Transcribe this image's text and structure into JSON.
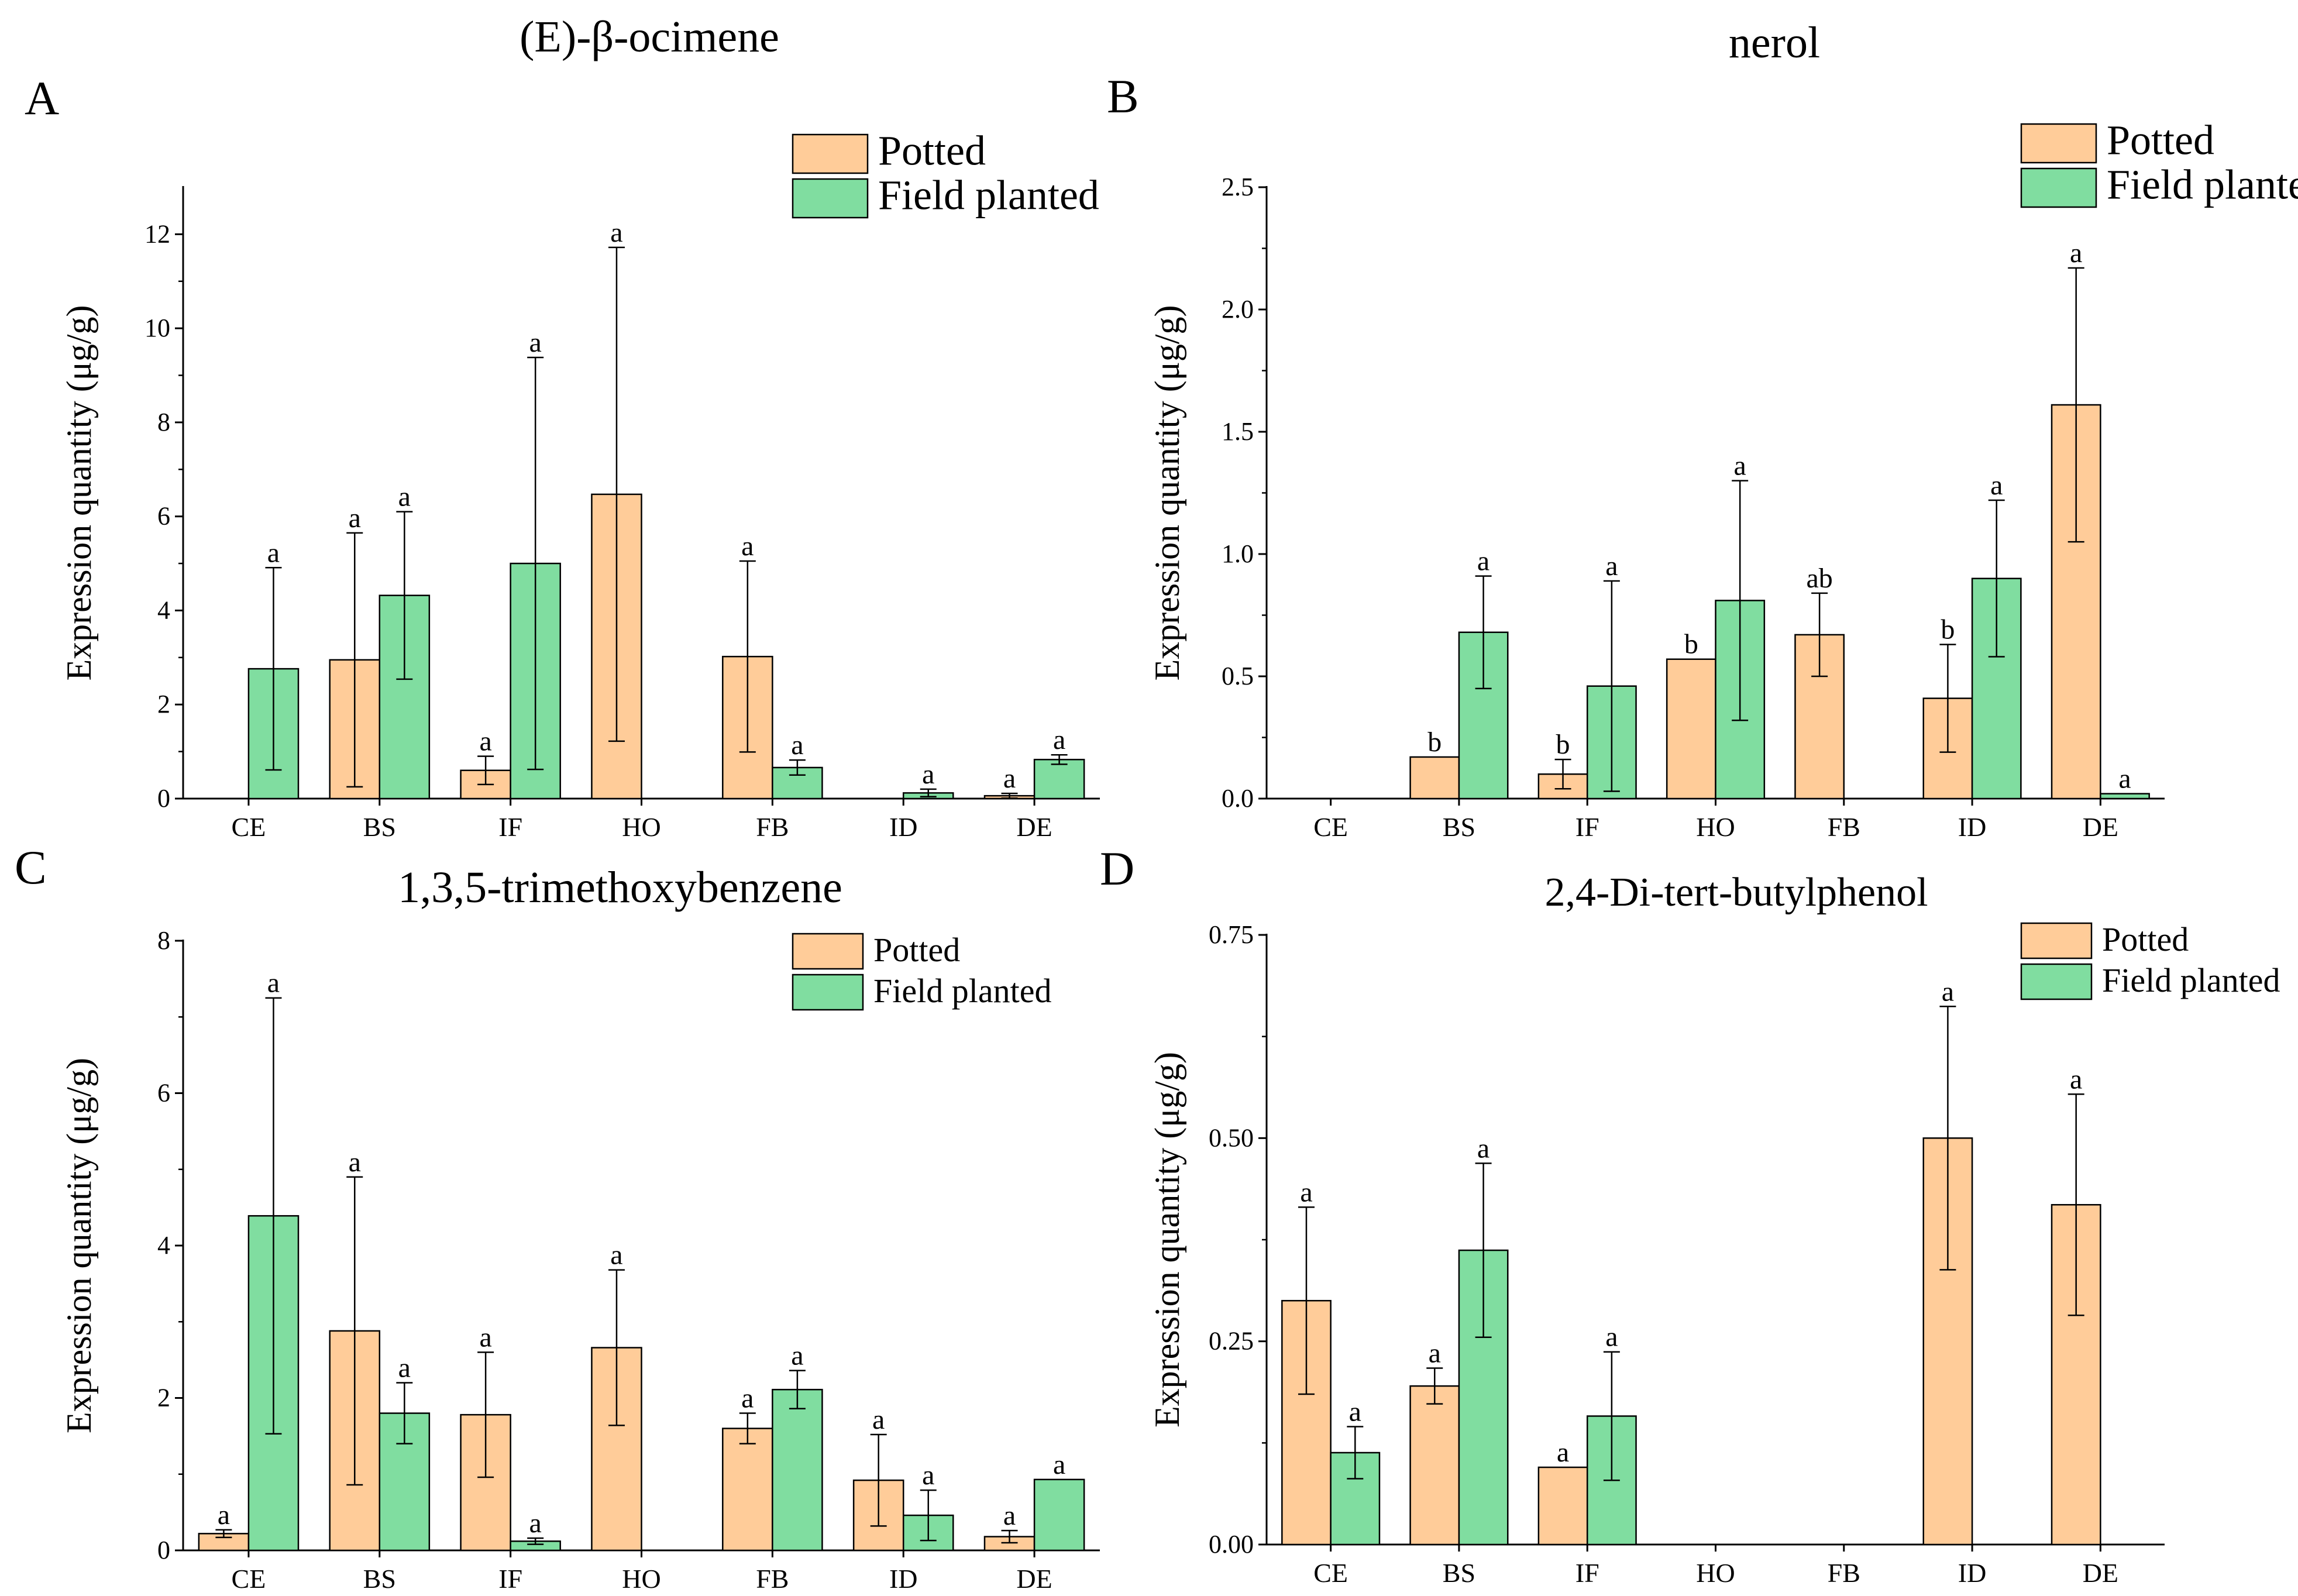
{
  "colors": {
    "potted": "#FFCC99",
    "field": "#80DDA0",
    "stroke": "#000000"
  },
  "chart_data": [
    {
      "panel_label": "A",
      "title": "(E)-β-ocimene",
      "type": "bar",
      "ylabel": "Expression quantity (μg/g)",
      "xlabel": "",
      "ylim": [
        0,
        13
      ],
      "yticks": [
        "0",
        "2",
        "4",
        "6",
        "8",
        "10",
        "12"
      ],
      "ytick_values": [
        0,
        2,
        4,
        6,
        8,
        10,
        12
      ],
      "categories": [
        "CE",
        "BS",
        "IF",
        "HO",
        "FB",
        "ID",
        "DE"
      ],
      "legend_position": "top-right",
      "series": [
        {
          "name": "Potted",
          "values": [
            null,
            2.95,
            0.6,
            6.47,
            3.02,
            null,
            0.06
          ],
          "errors": [
            null,
            2.7,
            0.3,
            5.25,
            2.03,
            null,
            0.05
          ],
          "labels": [
            "",
            "a",
            "a",
            "a",
            "a",
            "",
            "a"
          ]
        },
        {
          "name": "Field planted",
          "values": [
            2.76,
            4.32,
            5.0,
            null,
            0.66,
            0.12,
            0.83
          ],
          "errors": [
            2.15,
            1.78,
            4.38,
            null,
            0.16,
            0.08,
            0.1
          ],
          "labels": [
            "a",
            "a",
            "a",
            "",
            "a",
            "a",
            "a"
          ]
        }
      ]
    },
    {
      "panel_label": "B",
      "title": "nerol",
      "type": "bar",
      "ylabel": "Expression quantity (μg/g)",
      "xlabel": "",
      "ylim": [
        0,
        2.5
      ],
      "yticks": [
        "0.0",
        "0.5",
        "1.0",
        "1.5",
        "2.0",
        "2.5"
      ],
      "ytick_values": [
        0,
        0.5,
        1.0,
        1.5,
        2.0,
        2.5
      ],
      "categories": [
        "CE",
        "BS",
        "IF",
        "HO",
        "FB",
        "ID",
        "DE"
      ],
      "legend_position": "top-right",
      "series": [
        {
          "name": "Potted",
          "values": [
            null,
            0.17,
            0.1,
            0.57,
            0.67,
            0.41,
            1.61
          ],
          "errors": [
            null,
            0,
            0.06,
            0,
            0.17,
            0.22,
            0.56
          ],
          "labels": [
            "",
            "b",
            "b",
            "b",
            "ab",
            "b",
            "a"
          ]
        },
        {
          "name": "Field planted",
          "values": [
            null,
            0.68,
            0.46,
            0.81,
            null,
            0.9,
            0.02
          ],
          "errors": [
            null,
            0.23,
            0.43,
            0.49,
            null,
            0.32,
            0
          ],
          "labels": [
            "",
            "a",
            "a",
            "a",
            "",
            "a",
            "a"
          ]
        }
      ]
    },
    {
      "panel_label": "C",
      "title": "1,3,5-trimethoxybenzene",
      "type": "bar",
      "ylabel": "Expression quantity (μg/g)",
      "xlabel": "",
      "ylim": [
        0,
        8
      ],
      "yticks": [
        "0",
        "2",
        "4",
        "6",
        "8"
      ],
      "ytick_values": [
        0,
        2,
        4,
        6,
        8
      ],
      "categories": [
        "CE",
        "BS",
        "IF",
        "HO",
        "FB",
        "ID",
        "DE"
      ],
      "legend_position": "top-right",
      "series": [
        {
          "name": "Potted",
          "values": [
            0.22,
            2.88,
            1.78,
            2.66,
            1.6,
            0.92,
            0.18
          ],
          "errors": [
            0.05,
            2.02,
            0.82,
            1.02,
            0.2,
            0.6,
            0.08
          ],
          "labels": [
            "a",
            "a",
            "a",
            "a",
            "a",
            "a",
            "a"
          ]
        },
        {
          "name": "Field planted",
          "values": [
            4.39,
            1.8,
            0.12,
            null,
            2.11,
            0.46,
            0.93
          ],
          "errors": [
            2.86,
            0.4,
            0.04,
            null,
            0.25,
            0.33,
            0
          ],
          "labels": [
            "a",
            "a",
            "a",
            "",
            "a",
            "a",
            "a"
          ]
        }
      ]
    },
    {
      "panel_label": "D",
      "title": "2,4-Di-tert-butylphenol",
      "type": "bar",
      "ylabel": "Expression quantity (μg/g)",
      "xlabel": "",
      "ylim": [
        0,
        0.75
      ],
      "yticks": [
        "0.00",
        "0.25",
        "0.50",
        "0.75"
      ],
      "ytick_values": [
        0,
        0.25,
        0.5,
        0.75
      ],
      "categories": [
        "CE",
        "BS",
        "IF",
        "HO",
        "FB",
        "ID",
        "DE"
      ],
      "legend_position": "top-right",
      "series": [
        {
          "name": "Potted",
          "values": [
            0.3,
            0.195,
            0.095,
            null,
            null,
            0.5,
            0.418
          ],
          "errors": [
            0.115,
            0.022,
            0,
            null,
            null,
            0.162,
            0.136
          ],
          "labels": [
            "a",
            "a",
            "a",
            "",
            "",
            "a",
            "a"
          ]
        },
        {
          "name": "Field planted",
          "values": [
            0.113,
            0.362,
            0.158,
            null,
            null,
            null,
            null
          ],
          "errors": [
            0.032,
            0.107,
            0.079,
            null,
            null,
            null,
            null
          ],
          "labels": [
            "a",
            "a",
            "a",
            "",
            "",
            "",
            ""
          ]
        }
      ]
    }
  ]
}
